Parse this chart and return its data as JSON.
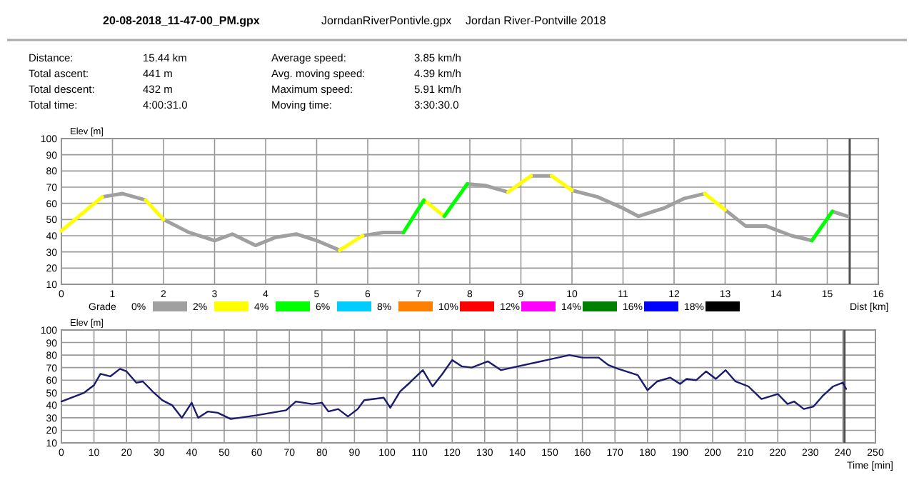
{
  "chart_data": [
    {
      "type": "other",
      "title": "Jordan River-Pontville 2018",
      "annotations": [
        "20-08-2018_11-47-00_PM.gpx",
        "JorndanRiverPontivle.gpx",
        "Distance:",
        "15.44 km",
        "Total ascent:",
        "441 m",
        "Total descent:",
        "432 m",
        "Total time:",
        "4:00:31.0",
        "Average speed:",
        "3.85 km/h",
        "Avg. moving speed:",
        "4.39 km/h",
        "Maximum speed:",
        "5.91 km/h",
        "Moving time:",
        "3:30:30.0"
      ]
    },
    {
      "type": "line",
      "ylabel": "Elev [m]",
      "xlabel": "Dist [km]",
      "legend_title": "Grade",
      "legend": "bottom",
      "grid": true,
      "xlim": [
        0,
        16
      ],
      "xticks": [
        0,
        1,
        2,
        3,
        4,
        5,
        6,
        7,
        8,
        9,
        10,
        11,
        12,
        13,
        14,
        15,
        16
      ],
      "ylim": [
        10,
        100
      ],
      "yticks": [
        10,
        20,
        30,
        40,
        50,
        60,
        70,
        80,
        90,
        100
      ],
      "ref_lines": [
        {
          "axis": "x",
          "value": 15.44,
          "color": "#505050"
        }
      ],
      "series": [
        {
          "name": "0%",
          "color": "#a0a0a0",
          "x": [
            0.8,
            1.2,
            1.65,
            null,
            2,
            2.5,
            3,
            3.35,
            3.8,
            4.2,
            4.6,
            5,
            5.45,
            null,
            5.9,
            6.3,
            6.7,
            null,
            7.95,
            8.3,
            8.75,
            null,
            9.2,
            9.6,
            null,
            10,
            10.5,
            11,
            11.3,
            11.8,
            12.2,
            12.6,
            null,
            13,
            13.4,
            13.8,
            14.3,
            14.7,
            null,
            15.1,
            15.4
          ],
          "values": [
            64,
            66,
            62,
            null,
            50,
            42,
            37,
            41,
            34,
            39,
            41,
            37,
            31,
            null,
            40,
            42,
            42,
            null,
            72,
            71,
            67,
            null,
            77,
            77,
            null,
            68,
            64,
            57,
            52,
            57,
            63,
            66,
            null,
            56,
            46,
            46,
            40,
            37,
            null,
            55,
            52
          ]
        },
        {
          "name": "2%",
          "color": "#ffff00",
          "x": [
            0,
            0.8,
            null,
            1.65,
            2,
            null,
            5.45,
            5.9,
            null,
            7.1,
            7.5,
            null,
            8.75,
            9.2,
            null,
            9.6,
            10,
            null,
            12.6,
            13
          ],
          "values": [
            43,
            64,
            null,
            62,
            50,
            null,
            31,
            40,
            null,
            62,
            52,
            null,
            67,
            77,
            null,
            77,
            68,
            null,
            66,
            56
          ]
        },
        {
          "name": "4%",
          "color": "#00ff00",
          "x": [
            6.7,
            7.1,
            null,
            7.5,
            7.95,
            null,
            14.7,
            15.1
          ],
          "values": [
            42,
            62,
            null,
            52,
            72,
            null,
            37,
            55
          ]
        },
        {
          "name": "6%",
          "color": "#00ccff"
        },
        {
          "name": "8%",
          "color": "#ff8000"
        },
        {
          "name": "10%",
          "color": "#ff0000"
        },
        {
          "name": "12%",
          "color": "#ff00ff"
        },
        {
          "name": "14%",
          "color": "#008000"
        },
        {
          "name": "16%",
          "color": "#0000ff"
        },
        {
          "name": "18%",
          "color": "#000000"
        }
      ]
    },
    {
      "type": "line",
      "ylabel": "Elev [m]",
      "xlabel": "Time [min]",
      "grid": true,
      "xlim": [
        0,
        250
      ],
      "xticks": [
        0,
        10,
        20,
        30,
        40,
        50,
        60,
        70,
        80,
        90,
        100,
        110,
        120,
        130,
        140,
        150,
        160,
        170,
        180,
        190,
        200,
        210,
        220,
        230,
        240,
        250
      ],
      "ylim": [
        10,
        100
      ],
      "yticks": [
        10,
        20,
        30,
        40,
        50,
        60,
        70,
        80,
        90,
        100
      ],
      "ref_lines": [
        {
          "axis": "x",
          "value": 240.5,
          "color": "#505050"
        }
      ],
      "series": [
        {
          "color": "#1a1a6e",
          "x": [
            0,
            7,
            10,
            12,
            15,
            18,
            20,
            23,
            25,
            28,
            31,
            34,
            37,
            40,
            42,
            45,
            48,
            52,
            60,
            69,
            72,
            77,
            80,
            82,
            85,
            88,
            91,
            93,
            99,
            101,
            104,
            107,
            111,
            114,
            117,
            120,
            123,
            126,
            131,
            135,
            156,
            160,
            165,
            168,
            171,
            177,
            180,
            183,
            187,
            190,
            192,
            195,
            198,
            201,
            204,
            207,
            211,
            215,
            220,
            223,
            225,
            228,
            231,
            234,
            237,
            240,
            241
          ],
          "values": [
            43,
            50,
            56,
            65,
            63,
            69,
            67,
            58,
            59,
            51,
            44,
            40,
            30,
            42,
            30,
            35,
            34,
            29,
            32,
            36,
            43,
            41,
            42,
            35,
            37,
            31,
            37,
            44,
            46,
            38,
            51,
            58,
            68,
            55,
            65,
            76,
            71,
            70,
            75,
            68,
            80,
            78,
            78,
            72,
            69,
            64,
            52,
            59,
            62,
            57,
            61,
            60,
            67,
            61,
            68,
            59,
            55,
            45,
            49,
            41,
            43,
            37,
            39,
            48,
            55,
            58,
            53
          ]
        }
      ]
    }
  ]
}
